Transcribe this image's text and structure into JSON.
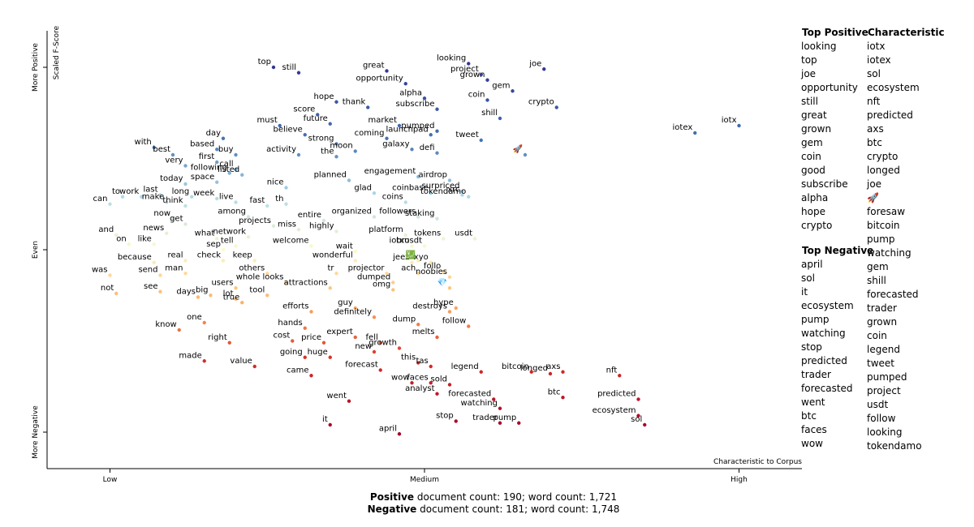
{
  "chart_data": {
    "type": "scatter",
    "x_label": "Characteristic to Corpus",
    "y_label": "Scaled F-Score",
    "xlim": [
      -0.1,
      1.1
    ],
    "ylim": [
      -1.2,
      1.2
    ],
    "xticks": [
      {
        "value": 0,
        "label": "Low"
      },
      {
        "value": 0.5,
        "label": "Medium"
      },
      {
        "value": 1,
        "label": "High"
      }
    ],
    "yticks": [
      {
        "value": -1,
        "label": "More Negative"
      },
      {
        "value": 0,
        "label": "Even"
      },
      {
        "value": 1,
        "label": "More Positive"
      }
    ],
    "labels": [
      "top",
      "still",
      "great",
      "opportunity",
      "looking",
      "grown",
      "joe",
      "project",
      "gem",
      "coin",
      "alpha",
      "hope",
      "thank",
      "crypto",
      "score",
      "shill",
      "future",
      "subscribe",
      "must",
      "pumped",
      "launchpad",
      "market",
      "believe",
      "strong",
      "coming",
      "tweet",
      "the",
      "moon",
      "galaxy",
      "defi",
      "activity",
      "day",
      "based",
      "with",
      "best",
      "very",
      "first",
      "buy",
      "call",
      "following",
      "listed",
      "space",
      "today",
      "planned",
      "engagement",
      "airdrop",
      "nice",
      "surpriced",
      "glad",
      "coinbase",
      "long",
      "last",
      "work",
      "to",
      "can",
      "make",
      "think",
      "week",
      "live",
      "fast",
      "th",
      "coins",
      "xrc",
      "tokendamo",
      "among",
      "now",
      "get",
      "entire",
      "organized",
      "followers",
      "staking",
      "projects",
      "news",
      "and",
      "highly",
      "miss",
      "network",
      "what",
      "platform",
      "tokens",
      "usdt",
      "sep",
      "tell",
      "on",
      "like",
      "welcome",
      "bro",
      "iotxusdt",
      "wait",
      "wonderful",
      "jeez",
      "xyo",
      "real",
      "check",
      "keep",
      "because",
      "send",
      "man",
      "others",
      "tr",
      "projector",
      "ach",
      "follo",
      "noobies",
      "was",
      "whole looks",
      "dumped",
      "attractions",
      "users",
      "tool",
      "omg",
      "see",
      "not",
      "days",
      "big",
      "lot",
      "true",
      "hype",
      "destroys",
      "guy",
      "efforts",
      "definitely",
      "one",
      "know",
      "dump",
      "hands",
      "follow",
      "right",
      "cost",
      "price",
      "expert",
      "fell",
      "melts",
      "new",
      "growth",
      "made",
      "going",
      "huge",
      "this",
      "tas",
      "value",
      "forecast",
      "axs",
      "legend",
      "bitcoin",
      "longed",
      "nft",
      "came",
      "wow",
      "faces",
      "sold",
      "analyst",
      "btc",
      "predicted",
      "forecasted",
      "went",
      "watching",
      "ecosystem",
      "trader",
      "pump",
      "stop",
      "sol",
      "it",
      "april",
      "iotex",
      "iotx",
      "🚀",
      "💹",
      "💎"
    ],
    "x": [
      0.26,
      0.3,
      0.44,
      0.47,
      0.57,
      0.6,
      0.69,
      0.59,
      0.64,
      0.6,
      0.5,
      0.36,
      0.41,
      0.71,
      0.33,
      0.62,
      0.35,
      0.52,
      0.27,
      0.52,
      0.51,
      0.46,
      0.31,
      0.36,
      0.44,
      0.59,
      0.36,
      0.39,
      0.48,
      0.52,
      0.3,
      0.18,
      0.17,
      0.07,
      0.1,
      0.12,
      0.17,
      0.2,
      0.2,
      0.19,
      0.21,
      0.17,
      0.12,
      0.38,
      0.49,
      0.54,
      0.28,
      0.56,
      0.42,
      0.51,
      0.13,
      0.08,
      0.05,
      0.02,
      0.0,
      0.09,
      0.12,
      0.17,
      0.2,
      0.25,
      0.28,
      0.47,
      0.56,
      0.57,
      0.22,
      0.1,
      0.12,
      0.34,
      0.42,
      0.49,
      0.52,
      0.26,
      0.09,
      0.01,
      0.36,
      0.3,
      0.22,
      0.17,
      0.47,
      0.53,
      0.58,
      0.18,
      0.2,
      0.03,
      0.07,
      0.32,
      0.48,
      0.5,
      0.39,
      0.39,
      0.48,
      0.51,
      0.12,
      0.18,
      0.23,
      0.07,
      0.08,
      0.12,
      0.25,
      0.36,
      0.44,
      0.49,
      0.53,
      0.54,
      0.0,
      0.28,
      0.45,
      0.35,
      0.2,
      0.25,
      0.45,
      0.08,
      0.01,
      0.14,
      0.16,
      0.2,
      0.21,
      0.55,
      0.54,
      0.39,
      0.32,
      0.42,
      0.15,
      0.11,
      0.49,
      0.31,
      0.57,
      0.19,
      0.29,
      0.34,
      0.39,
      0.43,
      0.52,
      0.42,
      0.46,
      0.15,
      0.31,
      0.35,
      0.49,
      0.51,
      0.23,
      0.43,
      0.72,
      0.59,
      0.67,
      0.7,
      0.81,
      0.32,
      0.48,
      0.51,
      0.54,
      0.52,
      0.72,
      0.84,
      0.61,
      0.38,
      0.62,
      0.84,
      0.62,
      0.65,
      0.55,
      0.85,
      0.35,
      0.46,
      0.93,
      1.0,
      0.66,
      0.49,
      0.54
    ],
    "values": [
      1.0,
      0.97,
      0.98,
      0.91,
      1.02,
      0.93,
      0.99,
      0.96,
      0.87,
      0.82,
      0.83,
      0.81,
      0.78,
      0.78,
      0.74,
      0.72,
      0.69,
      0.77,
      0.68,
      0.65,
      0.63,
      0.68,
      0.63,
      0.58,
      0.61,
      0.6,
      0.51,
      0.54,
      0.55,
      0.53,
      0.52,
      0.61,
      0.55,
      0.56,
      0.52,
      0.46,
      0.48,
      0.52,
      0.44,
      0.42,
      0.41,
      0.37,
      0.36,
      0.38,
      0.4,
      0.38,
      0.34,
      0.32,
      0.31,
      0.31,
      0.29,
      0.3,
      0.29,
      0.29,
      0.25,
      0.26,
      0.24,
      0.28,
      0.26,
      0.24,
      0.25,
      0.26,
      0.3,
      0.29,
      0.18,
      0.17,
      0.14,
      0.16,
      0.18,
      0.18,
      0.17,
      0.13,
      0.09,
      0.08,
      0.1,
      0.11,
      0.07,
      0.06,
      0.08,
      0.06,
      0.06,
      0.0,
      0.02,
      0.03,
      0.03,
      0.02,
      0.02,
      0.02,
      -0.01,
      -0.06,
      -0.07,
      -0.07,
      -0.06,
      -0.06,
      -0.06,
      -0.07,
      -0.14,
      -0.13,
      -0.13,
      -0.13,
      -0.13,
      -0.13,
      -0.12,
      -0.15,
      -0.14,
      -0.18,
      -0.18,
      -0.21,
      -0.21,
      -0.25,
      -0.22,
      -0.23,
      -0.24,
      -0.26,
      -0.25,
      -0.27,
      -0.29,
      -0.32,
      -0.34,
      -0.32,
      -0.34,
      -0.37,
      -0.4,
      -0.44,
      -0.41,
      -0.43,
      -0.42,
      -0.51,
      -0.5,
      -0.51,
      -0.48,
      -0.51,
      -0.48,
      -0.56,
      -0.54,
      -0.61,
      -0.59,
      -0.59,
      -0.62,
      -0.64,
      -0.64,
      -0.66,
      -0.67,
      -0.67,
      -0.67,
      -0.68,
      -0.69,
      -0.69,
      -0.73,
      -0.73,
      -0.74,
      -0.79,
      -0.81,
      -0.82,
      -0.82,
      -0.83,
      -0.87,
      -0.91,
      -0.95,
      -0.95,
      -0.94,
      -0.96,
      -0.96,
      -1.01,
      0.64,
      0.68,
      0.52,
      -0.06,
      -0.21
    ]
  },
  "top_positive": {
    "title": "Top Positive",
    "terms": [
      "looking",
      "top",
      "joe",
      "opportunity",
      "still",
      "great",
      "grown",
      "gem",
      "coin",
      "good",
      "subscribe",
      "alpha",
      "hope",
      "crypto"
    ]
  },
  "characteristic": {
    "title": "Characteristic",
    "terms": [
      "iotx",
      "iotex",
      "sol",
      "ecosystem",
      "nft",
      "predicted",
      "axs",
      "btc",
      "crypto",
      "longed",
      "joe",
      "🚀",
      "foresaw",
      "bitcoin",
      "pump",
      "watching",
      "gem",
      "shill",
      "forecasted",
      "trader",
      "grown",
      "coin",
      "legend",
      "tweet",
      "pumped",
      "project",
      "usdt",
      "follow",
      "looking",
      "tokendamo"
    ]
  },
  "top_negative": {
    "title": "Top Negative",
    "terms": [
      "april",
      "sol",
      "it",
      "ecosystem",
      "pump",
      "watching",
      "stop",
      "predicted",
      "trader",
      "forecasted",
      "went",
      "btc",
      "faces",
      "wow"
    ]
  },
  "footer": [
    {
      "label": "Positive",
      "text": "document count: 190; word count: 1,721"
    },
    {
      "label": "Negative",
      "text": "document count: 181; word count: 1,748"
    }
  ]
}
